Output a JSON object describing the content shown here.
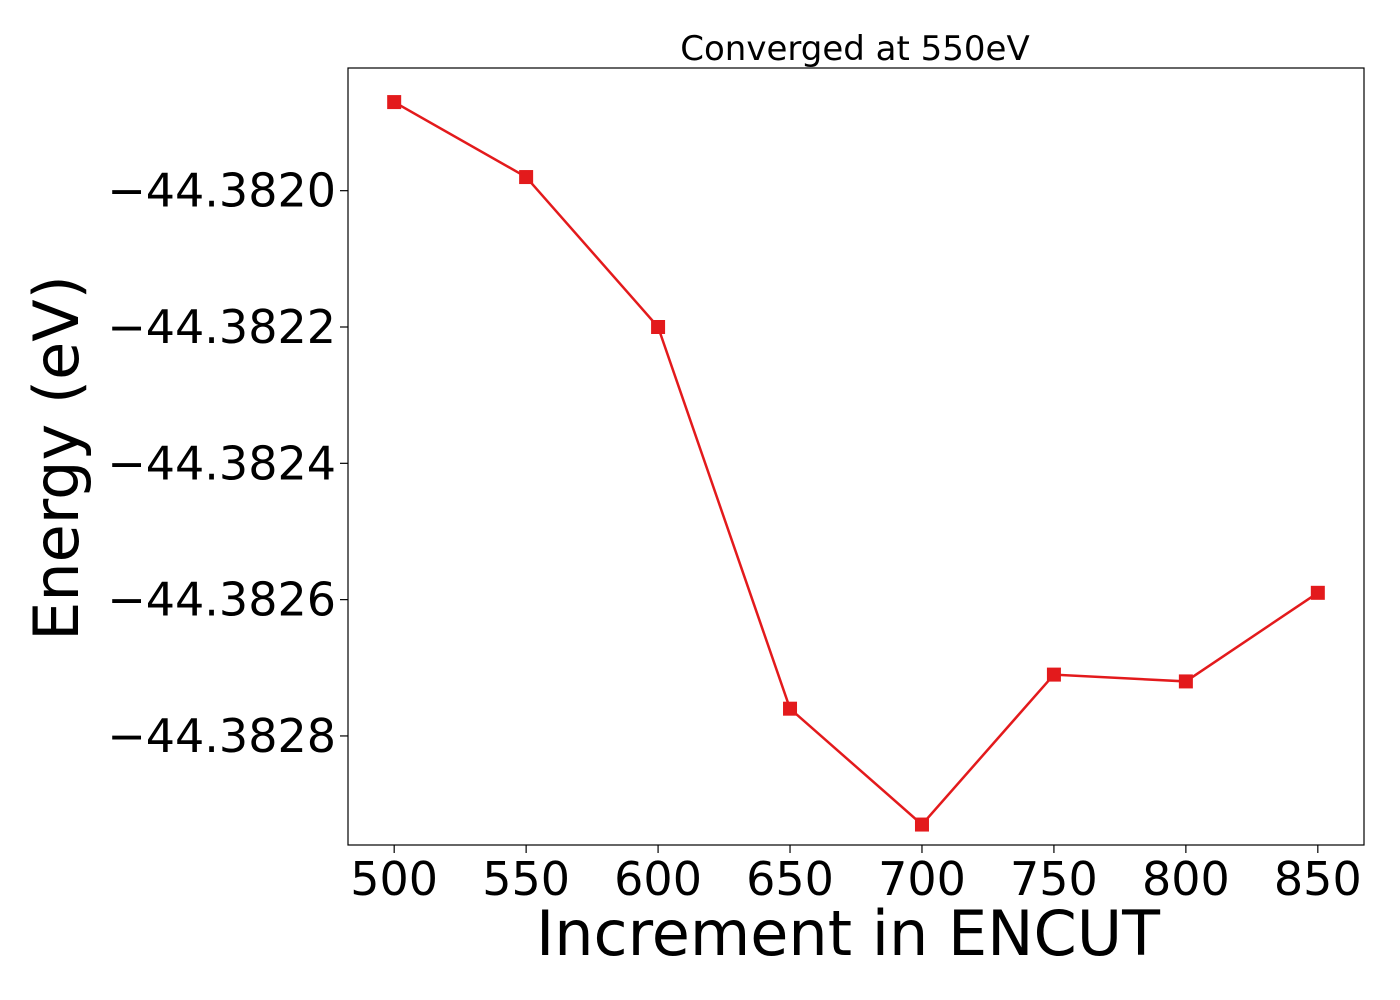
{
  "chart_data": {
    "type": "line",
    "title": "Converged at 550eV",
    "xlabel": "Increment in ENCUT",
    "ylabel": "Energy (eV)",
    "x": [
      500,
      550,
      600,
      650,
      700,
      750,
      800,
      850
    ],
    "series": [
      {
        "values": [
          -44.38187,
          -44.38198,
          -44.3822,
          -44.38276,
          -44.38293,
          -44.38271,
          -44.38272,
          -44.38259
        ],
        "color": "#e31a1c",
        "marker": "square"
      }
    ],
    "xlim": [
      482.5,
      867.5
    ],
    "ylim": [
      -44.38296,
      -44.38182
    ],
    "xticks": [
      500,
      550,
      600,
      650,
      700,
      750,
      800,
      850
    ],
    "yticks": [
      -44.382,
      -44.3822,
      -44.3824,
      -44.3826,
      -44.3828
    ],
    "ytick_labels": [
      "−44.3820",
      "−44.3822",
      "−44.3824",
      "−44.3826",
      "−44.3828"
    ],
    "grid": false,
    "legend": "none"
  }
}
